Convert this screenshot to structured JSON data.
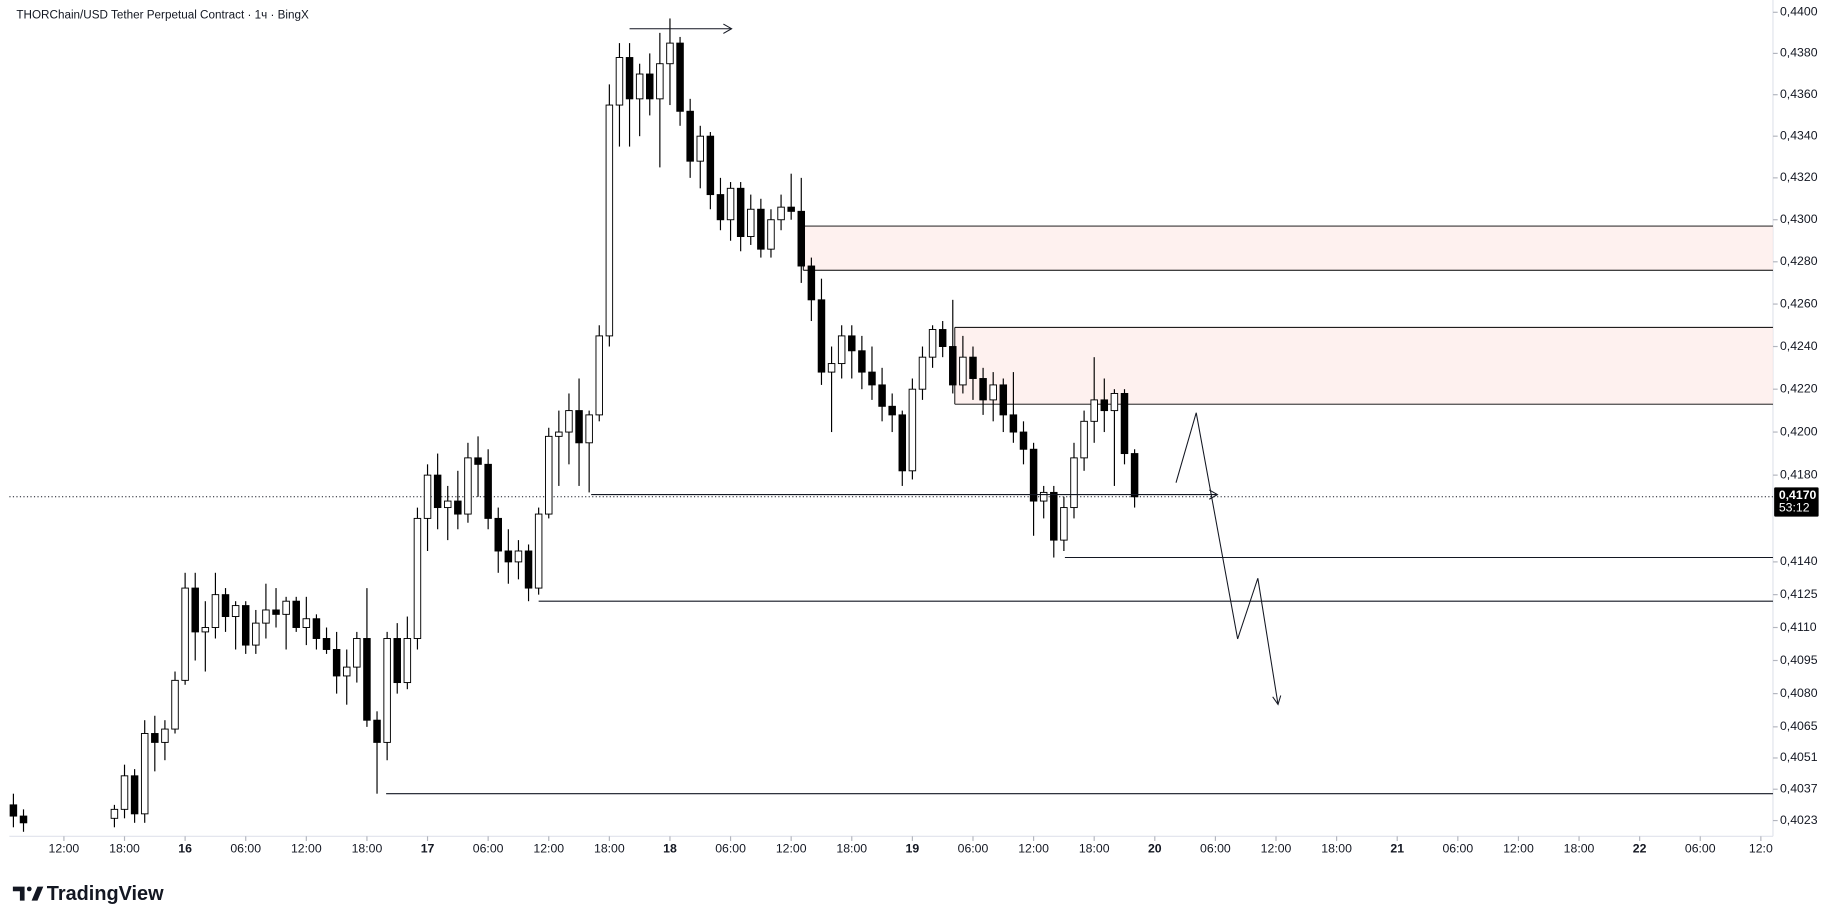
{
  "chart_data": {
    "type": "candlestick",
    "title": "THORChain/USD Tether Perpetual Contract · 1ч · BingX",
    "brand": "TradingView",
    "log": true,
    "grid": false,
    "up_color": "#ffffff",
    "down_color": "#000000",
    "ylim": [
      0.4016,
      0.4406
    ],
    "yticks": [
      {
        "value": 0.44,
        "label": "0,4400"
      },
      {
        "value": 0.438,
        "label": "0,4380"
      },
      {
        "value": 0.436,
        "label": "0,4360"
      },
      {
        "value": 0.434,
        "label": "0,4340"
      },
      {
        "value": 0.432,
        "label": "0,4320"
      },
      {
        "value": 0.43,
        "label": "0,4300"
      },
      {
        "value": 0.428,
        "label": "0,4280"
      },
      {
        "value": 0.426,
        "label": "0,4260"
      },
      {
        "value": 0.424,
        "label": "0,4240"
      },
      {
        "value": 0.422,
        "label": "0,4220"
      },
      {
        "value": 0.42,
        "label": "0,4200"
      },
      {
        "value": 0.418,
        "label": "0,4180"
      },
      {
        "value": 0.414,
        "label": "0,4140"
      },
      {
        "value": 0.4125,
        "label": "0,4125"
      },
      {
        "value": 0.411,
        "label": "0,4110"
      },
      {
        "value": 0.4095,
        "label": "0,4095"
      },
      {
        "value": 0.408,
        "label": "0,4080"
      },
      {
        "value": 0.4065,
        "label": "0,4065"
      },
      {
        "value": 0.4051,
        "label": "0,4051"
      },
      {
        "value": 0.4037,
        "label": "0,4037"
      },
      {
        "value": 0.4023,
        "label": "0,4023"
      }
    ],
    "xlim": [
      6.6,
      181.2
    ],
    "xticks": [
      {
        "value": 12,
        "label": "12:00"
      },
      {
        "value": 18,
        "label": "18:00"
      },
      {
        "value": 24,
        "label": "16"
      },
      {
        "value": 30,
        "label": "06:00"
      },
      {
        "value": 36,
        "label": "12:00"
      },
      {
        "value": 42,
        "label": "18:00"
      },
      {
        "value": 48,
        "label": "17"
      },
      {
        "value": 54,
        "label": "06:00"
      },
      {
        "value": 60,
        "label": "12:00"
      },
      {
        "value": 66,
        "label": "18:00"
      },
      {
        "value": 72,
        "label": "18"
      },
      {
        "value": 78,
        "label": "06:00"
      },
      {
        "value": 84,
        "label": "12:00"
      },
      {
        "value": 90,
        "label": "18:00"
      },
      {
        "value": 96,
        "label": "19"
      },
      {
        "value": 102,
        "label": "06:00"
      },
      {
        "value": 108,
        "label": "12:00"
      },
      {
        "value": 114,
        "label": "18:00"
      },
      {
        "value": 120,
        "label": "20"
      },
      {
        "value": 126,
        "label": "06:00"
      },
      {
        "value": 132,
        "label": "12:00"
      },
      {
        "value": 138,
        "label": "18:00"
      },
      {
        "value": 144,
        "label": "21"
      },
      {
        "value": 150,
        "label": "06:00"
      },
      {
        "value": 156,
        "label": "12:00"
      },
      {
        "value": 162,
        "label": "18:00"
      },
      {
        "value": 168,
        "label": "22"
      },
      {
        "value": 174,
        "label": "06:00"
      },
      {
        "value": 180,
        "label": "12:0"
      }
    ],
    "x": [
      7,
      8,
      17,
      18,
      19,
      20,
      21,
      22,
      23,
      24,
      25,
      26,
      27,
      28,
      29,
      30,
      31,
      32,
      33,
      34,
      35,
      36,
      37,
      38,
      39,
      40,
      41,
      42,
      43,
      44,
      45,
      46,
      47,
      48,
      49,
      50,
      51,
      52,
      53,
      54,
      55,
      56,
      57,
      58,
      59,
      60,
      61,
      62,
      63,
      64,
      65,
      66,
      67,
      68,
      69,
      70,
      71,
      72,
      73,
      74,
      75,
      76,
      77,
      78,
      79,
      80,
      81,
      82,
      83,
      84,
      85,
      86,
      87,
      88,
      89,
      90,
      91,
      92,
      93,
      94,
      95,
      96,
      97,
      98,
      99,
      100,
      101,
      102,
      103,
      104,
      105,
      106,
      107,
      108,
      109,
      110,
      111,
      112,
      113,
      114,
      115,
      116,
      117,
      118
    ],
    "open": [
      0.403,
      0.4025,
      0.4024,
      0.4028,
      0.4043,
      0.4026,
      0.4062,
      0.4058,
      0.4064,
      0.4086,
      0.4128,
      0.4108,
      0.411,
      0.4125,
      0.4115,
      0.412,
      0.4102,
      0.4112,
      0.4118,
      0.4116,
      0.4122,
      0.411,
      0.4114,
      0.4105,
      0.41,
      0.4088,
      0.4092,
      0.4105,
      0.4068,
      0.4058,
      0.4105,
      0.4085,
      0.4105,
      0.416,
      0.418,
      0.4165,
      0.4168,
      0.4162,
      0.4188,
      0.4185,
      0.416,
      0.4145,
      0.414,
      0.4145,
      0.4128,
      0.4162,
      0.4198,
      0.42,
      0.421,
      0.4195,
      0.4208,
      0.4245,
      0.4355,
      0.4378,
      0.4358,
      0.437,
      0.4358,
      0.4375,
      0.4385,
      0.4352,
      0.4328,
      0.434,
      0.4312,
      0.43,
      0.4315,
      0.4292,
      0.4305,
      0.4286,
      0.43,
      0.4306,
      0.4304,
      0.4278,
      0.4262,
      0.4228,
      0.4232,
      0.4245,
      0.4238,
      0.4228,
      0.4222,
      0.4212,
      0.4208,
      0.4182,
      0.422,
      0.4235,
      0.4248,
      0.424,
      0.4222,
      0.4235,
      0.4225,
      0.4215,
      0.4222,
      0.4208,
      0.42,
      0.4192,
      0.4168,
      0.4172,
      0.415,
      0.4165,
      0.4188,
      0.4205,
      0.4215,
      0.421,
      0.4218,
      0.419
    ],
    "high": [
      0.4035,
      0.4028,
      0.403,
      0.4048,
      0.4046,
      0.4068,
      0.407,
      0.4068,
      0.409,
      0.4135,
      0.4135,
      0.4122,
      0.4135,
      0.4128,
      0.4122,
      0.4122,
      0.4118,
      0.413,
      0.4128,
      0.4124,
      0.4124,
      0.4124,
      0.4116,
      0.411,
      0.4108,
      0.41,
      0.4108,
      0.4128,
      0.4072,
      0.4108,
      0.4112,
      0.4115,
      0.4165,
      0.4185,
      0.419,
      0.4175,
      0.4182,
      0.4195,
      0.4198,
      0.4192,
      0.4165,
      0.4155,
      0.415,
      0.4148,
      0.4165,
      0.4202,
      0.421,
      0.4218,
      0.4225,
      0.421,
      0.425,
      0.4365,
      0.4385,
      0.4385,
      0.4375,
      0.438,
      0.439,
      0.4397,
      0.4388,
      0.4358,
      0.4345,
      0.4342,
      0.432,
      0.4318,
      0.4318,
      0.4312,
      0.431,
      0.4305,
      0.4312,
      0.4322,
      0.432,
      0.4282,
      0.4272,
      0.424,
      0.425,
      0.425,
      0.4245,
      0.424,
      0.423,
      0.4218,
      0.421,
      0.4225,
      0.424,
      0.425,
      0.4252,
      0.4262,
      0.4245,
      0.424,
      0.423,
      0.4228,
      0.4225,
      0.4228,
      0.4205,
      0.4195,
      0.4175,
      0.4175,
      0.417,
      0.4195,
      0.421,
      0.4235,
      0.4225,
      0.422,
      0.422,
      0.4192
    ],
    "low": [
      0.402,
      0.4018,
      0.402,
      0.4024,
      0.4022,
      0.4022,
      0.4045,
      0.405,
      0.4062,
      0.4084,
      0.4095,
      0.409,
      0.4105,
      0.4108,
      0.41,
      0.4098,
      0.4098,
      0.4105,
      0.411,
      0.41,
      0.4108,
      0.4102,
      0.41,
      0.4098,
      0.408,
      0.4075,
      0.4085,
      0.4065,
      0.4035,
      0.405,
      0.408,
      0.4082,
      0.41,
      0.4145,
      0.4155,
      0.415,
      0.4155,
      0.4158,
      0.417,
      0.4155,
      0.4135,
      0.413,
      0.4132,
      0.4122,
      0.4125,
      0.416,
      0.4175,
      0.4185,
      0.4175,
      0.4172,
      0.4205,
      0.424,
      0.4335,
      0.4335,
      0.434,
      0.435,
      0.4325,
      0.4355,
      0.4345,
      0.432,
      0.4315,
      0.4305,
      0.4295,
      0.429,
      0.4285,
      0.4288,
      0.4282,
      0.4282,
      0.4295,
      0.43,
      0.427,
      0.4252,
      0.4222,
      0.42,
      0.4225,
      0.4225,
      0.422,
      0.4215,
      0.4205,
      0.42,
      0.4175,
      0.4178,
      0.4215,
      0.423,
      0.4235,
      0.4218,
      0.4218,
      0.4215,
      0.4208,
      0.4205,
      0.42,
      0.4195,
      0.4185,
      0.4152,
      0.416,
      0.4142,
      0.4145,
      0.416,
      0.4182,
      0.4195,
      0.42,
      0.4175,
      0.4185,
      0.4165
    ],
    "close": [
      0.4025,
      0.4022,
      0.4028,
      0.4043,
      0.4026,
      0.4062,
      0.4058,
      0.4064,
      0.4086,
      0.4128,
      0.4108,
      0.411,
      0.4125,
      0.4115,
      0.412,
      0.4102,
      0.4112,
      0.4118,
      0.4116,
      0.4122,
      0.411,
      0.4114,
      0.4105,
      0.41,
      0.4088,
      0.4092,
      0.4105,
      0.4068,
      0.4058,
      0.4105,
      0.4085,
      0.4105,
      0.416,
      0.418,
      0.4165,
      0.4168,
      0.4162,
      0.4188,
      0.4185,
      0.416,
      0.4145,
      0.414,
      0.4145,
      0.4128,
      0.4162,
      0.4198,
      0.42,
      0.421,
      0.4195,
      0.4208,
      0.4245,
      0.4355,
      0.4378,
      0.4358,
      0.437,
      0.4358,
      0.4375,
      0.4385,
      0.4352,
      0.4328,
      0.434,
      0.4312,
      0.43,
      0.4315,
      0.4292,
      0.4305,
      0.4286,
      0.43,
      0.4306,
      0.4304,
      0.4278,
      0.4262,
      0.4228,
      0.4232,
      0.4245,
      0.4238,
      0.4228,
      0.4222,
      0.4212,
      0.4208,
      0.4182,
      0.422,
      0.4235,
      0.4248,
      0.424,
      0.4222,
      0.4235,
      0.4225,
      0.4215,
      0.4222,
      0.4208,
      0.42,
      0.4192,
      0.4168,
      0.4172,
      0.415,
      0.4165,
      0.4188,
      0.4205,
      0.4215,
      0.421,
      0.4218,
      0.419,
      0.417
    ],
    "last_price": {
      "value": 0.417,
      "label": "0,4170"
    },
    "countdown": "53:12",
    "zones": [
      {
        "from": 85.2,
        "low": 0.4276,
        "high": 0.4297
      },
      {
        "from": 100.2,
        "low": 0.4213,
        "high": 0.4249
      }
    ],
    "levels": [
      {
        "price": 0.4392,
        "from": 68,
        "to": 78.1,
        "arrow": true
      },
      {
        "price": 0.4171,
        "from": 64.2,
        "to": 126.2,
        "arrow": true
      },
      {
        "price": 0.4142,
        "from": 111.1
      },
      {
        "price": 0.4122,
        "from": 59
      },
      {
        "price": 0.4035,
        "from": 43.9
      }
    ],
    "projection": {
      "x": [
        122.1,
        124.1,
        128.2,
        130.2,
        132.2
      ],
      "y": [
        0.41765,
        0.4209,
        0.41048,
        0.41325,
        0.40751
      ]
    }
  }
}
